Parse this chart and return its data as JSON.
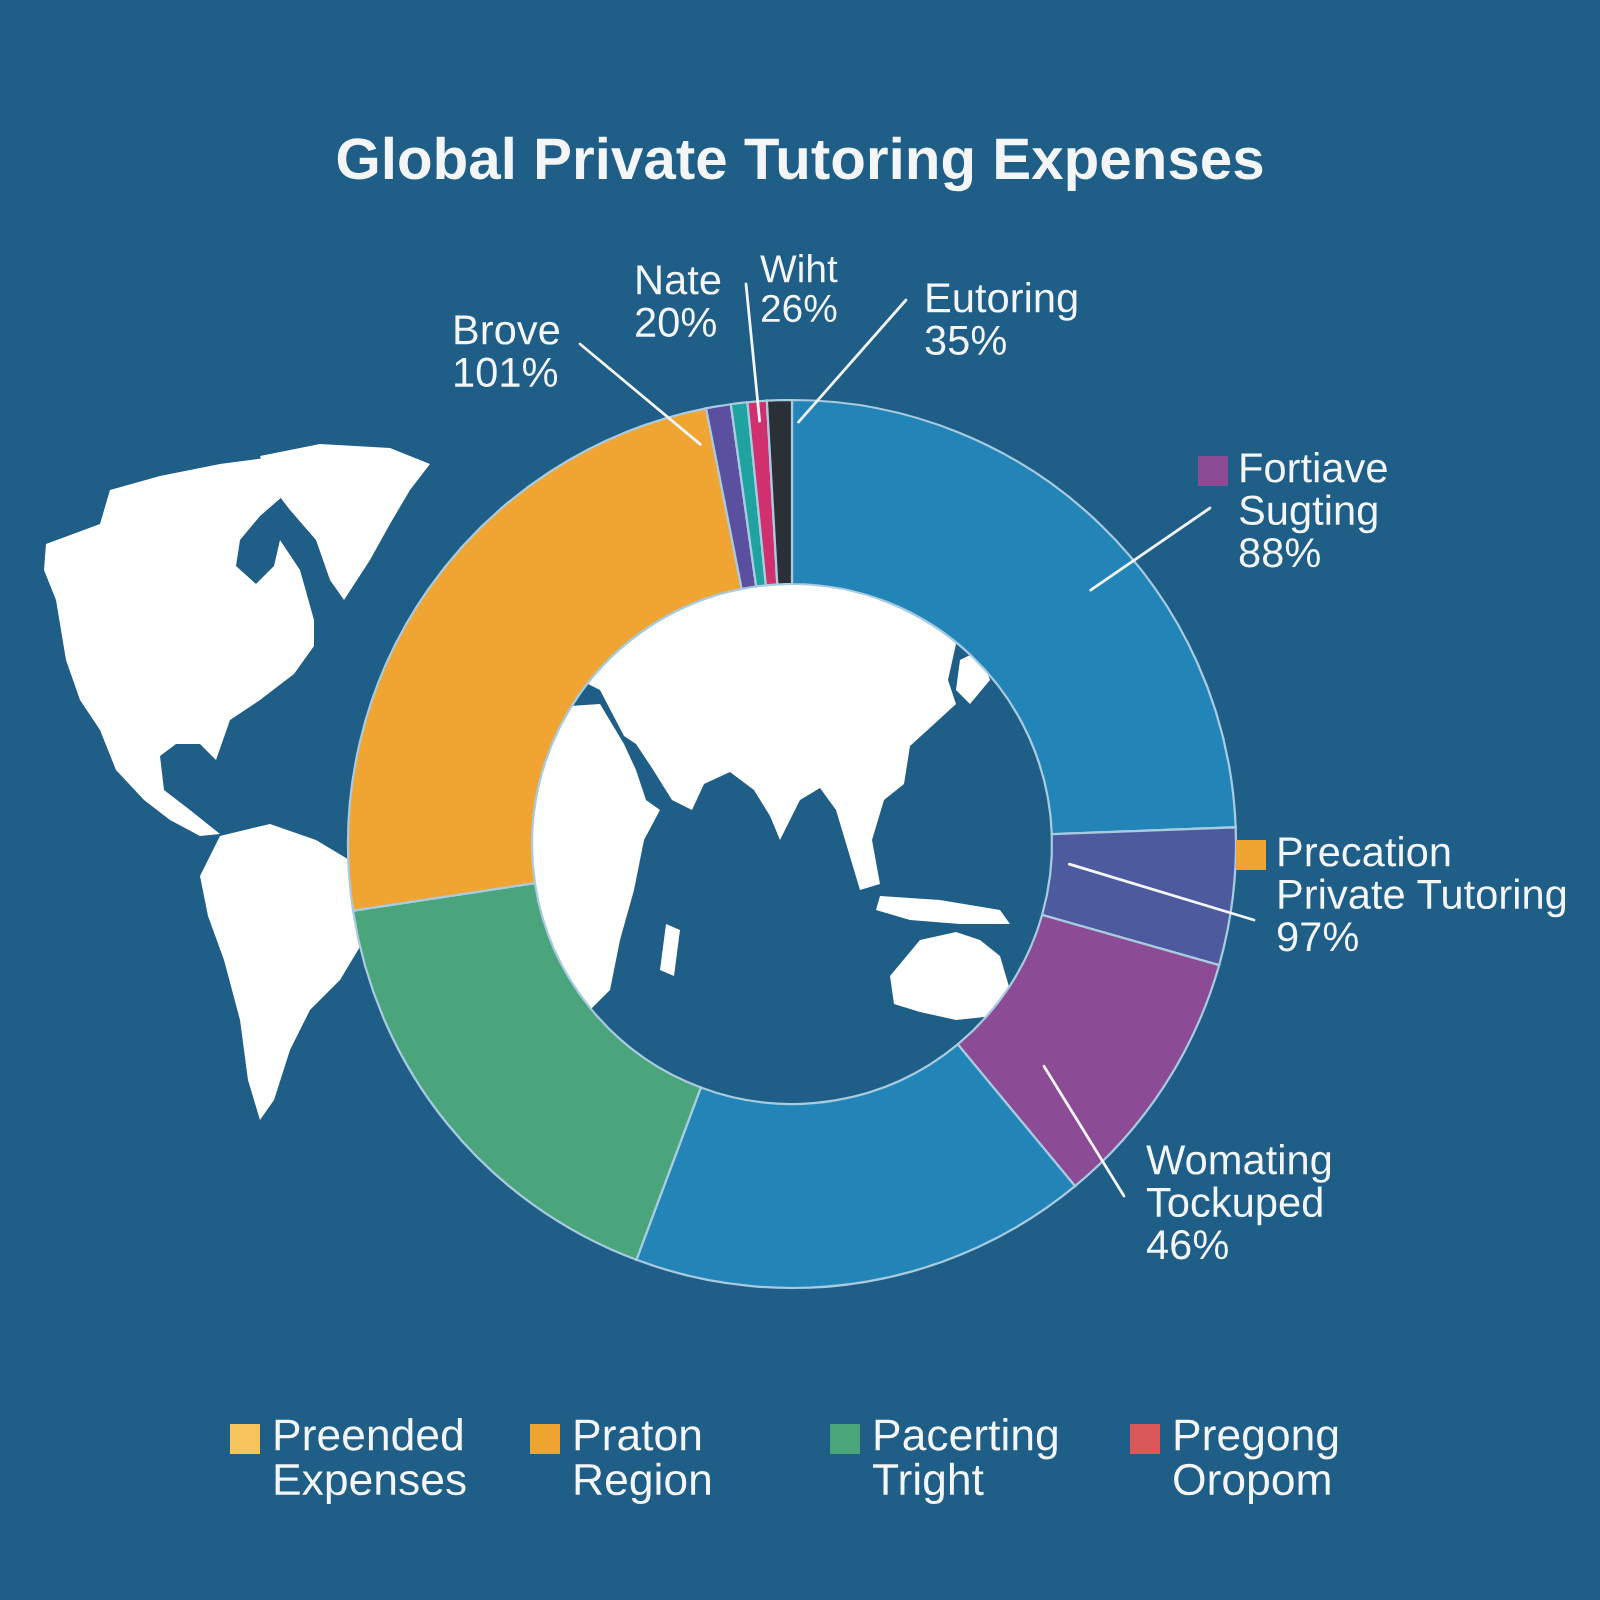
{
  "chart_data": [
    {
      "type": "donut",
      "title": "Global Private Tutoring Expenses",
      "categories": [
        null,
        null,
        null,
        null,
        null,
        null,
        null,
        null,
        null,
        null
      ],
      "values": [
        24.4,
        5.0,
        9.6,
        16.7,
        16.9,
        24.3,
        0.9,
        0.6,
        0.7,
        0.9
      ],
      "colors": [
        "#2384b8",
        "#4d5a9e",
        "#8b4b95",
        "#2384b8",
        "#4ba57c",
        "#f0a431",
        "#5b4fa0",
        "#1fa3a0",
        "#d0306e",
        "#2b2f36"
      ],
      "annotations": [
        "Eutoring\n35%",
        "Fortiave\nSugting\n88%",
        "Precation\nPrivate Tutoring\n97%",
        "Womating\nTockuped\n46%",
        "Brove\n101%",
        "Nate\n20%",
        "Wiht\n26%"
      ]
    },
    {
      "type": "other",
      "categories": [
        "Preended\nExpenses",
        "Praton\nRegion",
        "Pacerting\nTright",
        "Pregong\nOropom"
      ],
      "colors": [
        "#f6c35c",
        "#f0a430",
        "#4aa57a",
        "#d9585a"
      ]
    }
  ]
}
